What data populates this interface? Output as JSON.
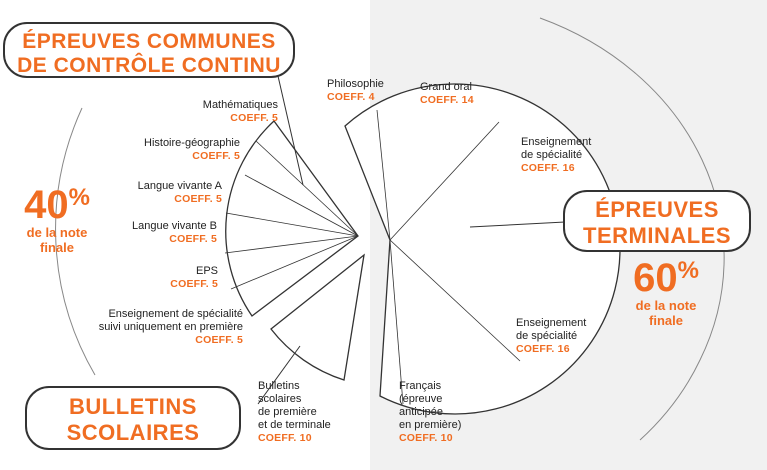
{
  "boxes": {
    "controle_continu": [
      "ÉPREUVES COMMUNES",
      "DE CONTRÔLE CONTINU"
    ],
    "bulletins": [
      "BULLETINS",
      "SCOLAIRES"
    ],
    "terminales": [
      "ÉPREUVES",
      "TERMINALES"
    ]
  },
  "left_pct": {
    "value": "40",
    "unit": "%",
    "text": [
      "de la note",
      "finale"
    ]
  },
  "right_pct": {
    "value": "60",
    "unit": "%",
    "text": [
      "de la note",
      "finale"
    ]
  },
  "left_items": [
    {
      "label": [
        "Mathématiques"
      ],
      "coef": "COEFF. 5"
    },
    {
      "label": [
        "Histoire-géographie"
      ],
      "coef": "COEFF. 5"
    },
    {
      "label": [
        "Langue vivante A"
      ],
      "coef": "COEFF. 5"
    },
    {
      "label": [
        "Langue vivante B"
      ],
      "coef": "COEFF. 5"
    },
    {
      "label": [
        "EPS"
      ],
      "coef": "COEFF. 5"
    },
    {
      "label": [
        "Enseignement de spécialité",
        "suivi uniquement en première"
      ],
      "coef": "COEFF. 5"
    }
  ],
  "bulletins_item": {
    "label": [
      "Bulletins",
      "scolaires",
      "de première",
      "et de terminale"
    ],
    "coef": "COEFF. 10"
  },
  "right_items": [
    {
      "label": [
        "Philosophie"
      ],
      "coef": "COEFF. 4"
    },
    {
      "label": [
        "Grand oral"
      ],
      "coef": "COEFF. 14"
    },
    {
      "label": [
        "Enseignement",
        "de spécialité"
      ],
      "coef": "COEFF. 16"
    },
    {
      "label": [
        "Enseignement",
        "de spécialité"
      ],
      "coef": "COEFF. 16"
    },
    {
      "label": [
        "Français",
        "(épreuve",
        "anticipée",
        "en première)"
      ],
      "coef": "COEFF. 10"
    }
  ],
  "colors": {
    "accent": "#f06d22",
    "line": "#333333",
    "right_bg": "#f1f1f1"
  }
}
